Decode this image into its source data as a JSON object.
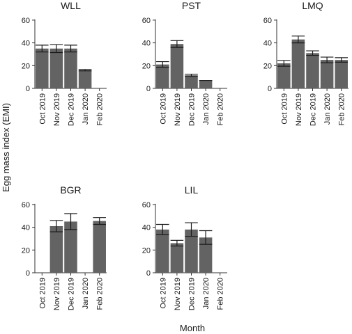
{
  "figure": {
    "xlabel": "Month",
    "ylabel": "Egg mass index (EMI)"
  },
  "chart_data": {
    "type": "bar",
    "categories": [
      "Oct 2019",
      "Nov 2019",
      "Dec 2019",
      "Jan 2020",
      "Feb 2020"
    ],
    "yticks": [
      0,
      20,
      40,
      60
    ],
    "ylim": [
      0,
      63
    ],
    "grid": false,
    "bar_color": "#636363",
    "error_bar_color": "#1a1a1a",
    "panels": [
      {
        "title": "WLL",
        "values": [
          35,
          35,
          35,
          16,
          null
        ],
        "errors": [
          3,
          3.5,
          3,
          0.6,
          null
        ]
      },
      {
        "title": "PST",
        "values": [
          21,
          39,
          11.5,
          7,
          null
        ],
        "errors": [
          2.5,
          3,
          1,
          0,
          null
        ]
      },
      {
        "title": "LMQ",
        "values": [
          22,
          43,
          31,
          25,
          25
        ],
        "errors": [
          2.5,
          3,
          2,
          2.5,
          2
        ]
      },
      {
        "title": "BGR",
        "values": [
          null,
          41,
          45,
          null,
          45.5
        ],
        "errors": [
          null,
          5,
          7,
          null,
          3
        ]
      },
      {
        "title": "LIL",
        "values": [
          38,
          26,
          38,
          31,
          null
        ],
        "errors": [
          4.5,
          2.5,
          6,
          6,
          null
        ]
      }
    ]
  }
}
